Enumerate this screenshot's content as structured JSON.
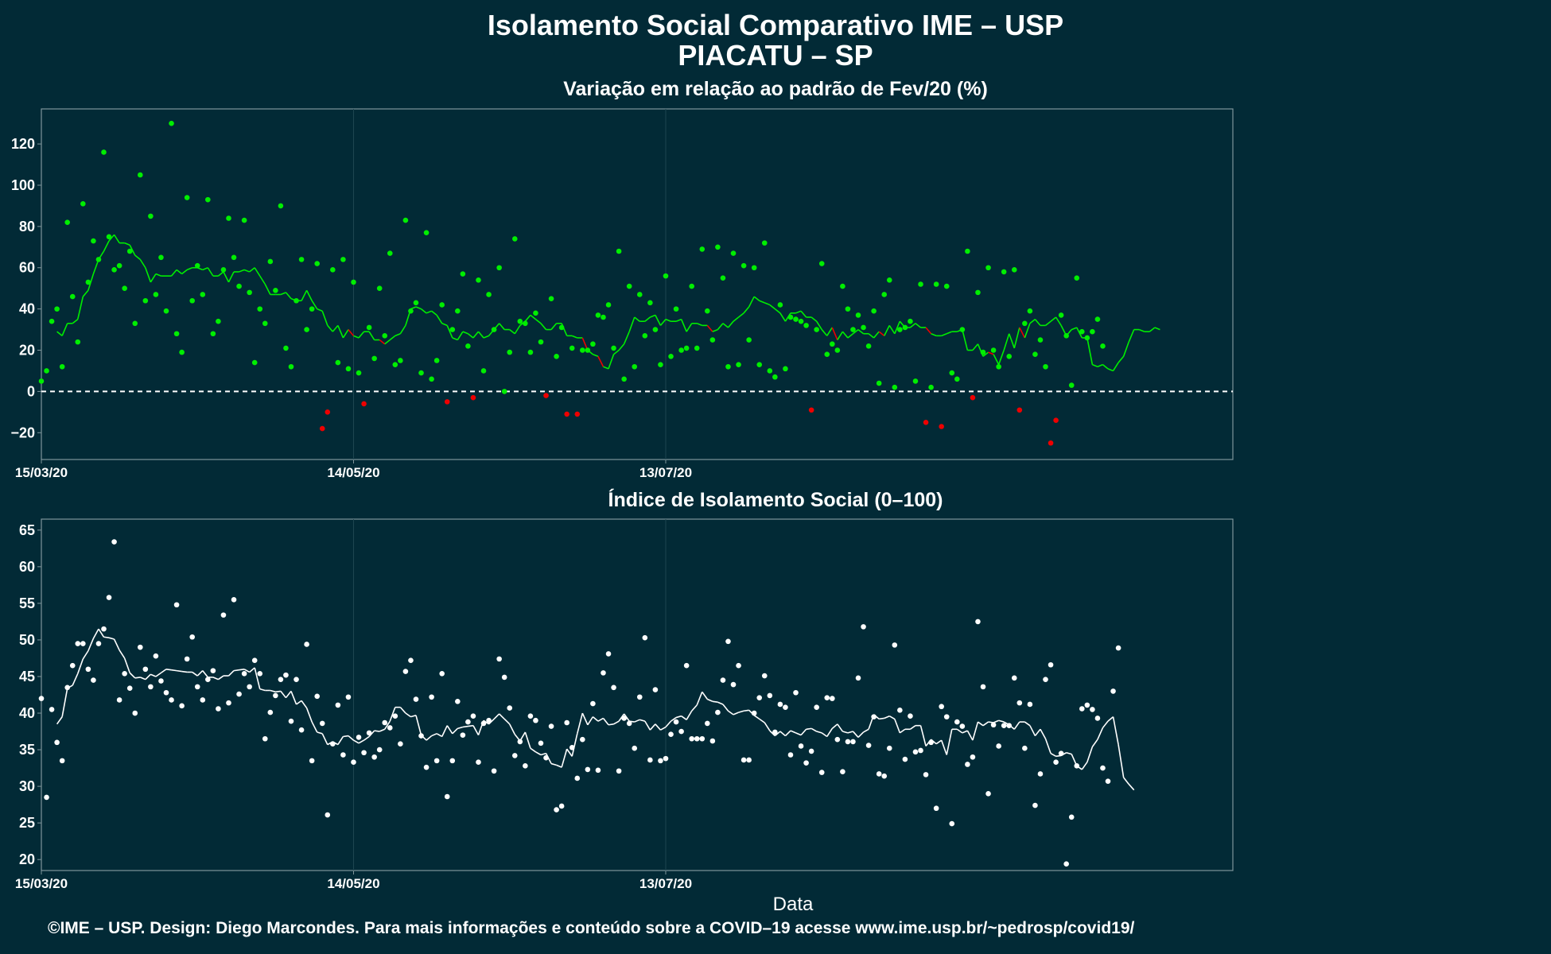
{
  "title": "Isolamento Social Comparativo IME – USP",
  "subtitle": "PIACATU – SP",
  "caption": "©IME – USP. Design: Diego Marcondes. Para mais informações e conteúdo sobre a COVID–19 acesse www.ime.usp.br/~pedrosp/covid19/",
  "colors": {
    "background": "#022a36",
    "above": "#00ee00",
    "below": "#ee0000",
    "index": "#ffffff",
    "grid": "#1e4650",
    "axis": "#7f959b"
  },
  "chart_data": [
    {
      "type": "scatter",
      "title": "Variação em relação ao padrão de Fev/20 (%)",
      "xlabel": "",
      "ylabel": "",
      "x_start": "15/03/20",
      "x_end": "30/10/20",
      "x_ticks": [
        "15/03/20",
        "14/05/20",
        "13/07/20"
      ],
      "y_ticks": [
        -20,
        0,
        20,
        40,
        60,
        80,
        100,
        120
      ],
      "ylim": [
        -33,
        137
      ],
      "reference_line": 0,
      "grid": true,
      "legend": "none",
      "series": [
        {
          "kind": "points",
          "values": [
            5,
            10,
            34,
            40,
            12,
            82,
            46,
            24,
            91,
            53,
            73,
            64,
            116,
            75,
            59,
            61,
            50,
            68,
            33,
            105,
            44,
            85,
            47,
            65,
            39,
            130,
            28,
            19,
            94,
            44,
            61,
            47,
            93,
            28,
            34,
            59,
            84,
            65,
            51,
            83,
            48,
            14,
            40,
            33,
            63,
            49,
            90,
            21,
            12,
            44,
            64,
            30,
            40,
            62,
            -18,
            -10,
            59,
            14,
            64,
            11,
            53,
            9,
            -6,
            31,
            16,
            50,
            27,
            67,
            13,
            15,
            83,
            39,
            43,
            9,
            77,
            6,
            15,
            42,
            -5,
            30,
            39,
            57,
            22,
            -3,
            54,
            10,
            47,
            30,
            60,
            0,
            19,
            74,
            34,
            33,
            19,
            38,
            24,
            -2,
            45,
            17,
            31,
            -11,
            21,
            -11,
            20,
            20,
            23,
            37,
            36,
            42,
            21,
            68,
            6,
            51,
            12,
            47,
            27,
            43,
            30,
            13,
            56,
            17,
            40,
            20,
            21,
            51,
            21,
            69,
            39,
            25,
            70,
            55,
            12,
            67,
            13,
            61,
            25,
            60,
            13,
            72,
            10,
            7,
            42,
            11,
            36,
            35,
            34,
            32,
            -9,
            30,
            62,
            18,
            23,
            20,
            51,
            40,
            30,
            37,
            31,
            22,
            39,
            4,
            47,
            54,
            2,
            30,
            31,
            34,
            5,
            52,
            -15,
            2,
            52,
            -17,
            51,
            9,
            6,
            30,
            68,
            -3,
            48,
            19,
            60,
            20,
            12,
            58,
            17,
            59,
            -9,
            33,
            39,
            18,
            25,
            12,
            -25,
            -14,
            37,
            27,
            3,
            55,
            29,
            26,
            29,
            35,
            22
          ]
        },
        {
          "kind": "moving-average",
          "values": [
            29,
            27,
            33,
            33,
            35,
            46,
            49,
            57,
            64,
            68,
            73,
            76,
            72,
            72,
            71,
            66,
            64,
            60,
            53,
            57,
            56,
            56,
            56,
            59,
            57,
            59,
            60,
            60,
            59,
            60,
            56,
            56,
            58,
            53,
            58,
            58,
            59,
            58,
            60,
            56,
            52,
            47,
            47,
            47,
            48,
            45,
            44,
            44,
            49,
            44,
            40,
            39,
            32,
            29,
            32,
            26,
            30,
            27,
            26,
            29,
            29,
            25,
            25,
            23,
            25,
            27,
            28,
            32,
            40,
            41,
            40,
            38,
            39,
            37,
            33,
            32,
            26,
            25,
            29,
            28,
            26,
            29,
            26,
            27,
            30,
            33,
            30,
            30,
            28,
            32,
            34,
            37,
            35,
            33,
            30,
            30,
            33,
            33,
            27,
            27,
            26,
            26,
            20,
            18,
            17,
            12,
            11,
            18,
            20,
            23,
            29,
            36,
            34,
            34,
            36,
            37,
            32,
            35,
            34,
            34,
            35,
            29,
            33,
            33,
            32,
            32,
            29,
            30,
            33,
            31,
            34,
            36,
            38,
            41,
            46,
            44,
            43,
            42,
            40,
            38,
            34,
            38,
            38,
            39,
            36,
            36,
            34,
            30,
            27,
            31,
            25,
            29,
            26,
            28,
            30,
            28,
            28,
            26,
            29,
            27,
            32,
            28,
            34,
            31,
            31,
            33,
            31,
            31,
            28,
            27,
            27,
            28,
            29,
            29,
            30,
            20,
            20,
            23,
            17,
            19,
            18,
            13,
            20,
            28,
            21,
            31,
            26,
            33,
            35,
            32,
            32,
            34,
            36,
            32,
            27,
            30,
            31,
            26,
            26,
            13,
            12,
            13,
            11,
            10,
            14,
            17,
            24,
            30,
            30,
            29,
            29,
            31,
            30
          ]
        }
      ]
    },
    {
      "type": "scatter",
      "title": "Índice de Isolamento Social (0–100)",
      "xlabel": "Data",
      "ylabel": "",
      "x_start": "15/03/20",
      "x_end": "30/10/20",
      "x_ticks": [
        "15/03/20",
        "14/05/20",
        "13/07/20"
      ],
      "y_ticks": [
        20,
        25,
        30,
        35,
        40,
        45,
        50,
        55,
        60,
        65
      ],
      "ylim": [
        18.5,
        66.5
      ],
      "grid": true,
      "legend": "none",
      "series": [
        {
          "kind": "points",
          "values": [
            42,
            28.5,
            40.5,
            36,
            33.5,
            43.5,
            46.5,
            49.5,
            49.5,
            46,
            44.5,
            49.5,
            51.5,
            55.8,
            63.4,
            41.8,
            45.4,
            43.4,
            40,
            49,
            46,
            43.6,
            47.8,
            44.4,
            42.8,
            41.8,
            54.8,
            41,
            47.4,
            50.4,
            43.6,
            41.8,
            44.6,
            45.8,
            40.6,
            53.4,
            41.4,
            55.5,
            42.6,
            45.4,
            43.6,
            47.2,
            45.4,
            36.5,
            40.1,
            42.4,
            44.6,
            45.2,
            38.9,
            44.6,
            37.7,
            49.4,
            33.5,
            42.3,
            38.6,
            26.1,
            35.8,
            41.1,
            34.3,
            42.2,
            33.3,
            36.7,
            34.6,
            37.3,
            34,
            35,
            38.7,
            38,
            39.6,
            35.8,
            45.7,
            47.2,
            41.9,
            36.9,
            32.6,
            42.2,
            33.5,
            45.4,
            28.6,
            33.5,
            41.6,
            37,
            38.8,
            39.6,
            33.3,
            38.6,
            39,
            32.1,
            47.4,
            44.9,
            40.7,
            34.2,
            36.1,
            32.8,
            39.6,
            39,
            35.9,
            33.9,
            38.2,
            26.8,
            27.3,
            38.7,
            35.3,
            31.1,
            36.4,
            32.3,
            41.3,
            32.2,
            45.5,
            48.1,
            43.5,
            32.1,
            39.3,
            38.6,
            35.2,
            42.2,
            50.3,
            33.6,
            43.2,
            33.5,
            33.8,
            37.1,
            38.8,
            37.5,
            46.5,
            36.5,
            36.5,
            36.5,
            38.6,
            36.2,
            40.1,
            44.5,
            49.8,
            43.9,
            46.5,
            33.6,
            33.6,
            40,
            42.1,
            45.1,
            42.4,
            37.4,
            41.2,
            40.8,
            34.3,
            42.8,
            35.5,
            33.2,
            34.8,
            40.8,
            31.9,
            42.1,
            42,
            36.4,
            32,
            36.1,
            36.1,
            44.8,
            51.8,
            35.6,
            39.5,
            31.7,
            31.4,
            35.2,
            49.3,
            40.4,
            33.7,
            39.6,
            34.7,
            34.9,
            31.6,
            36,
            27,
            40.9,
            39.5,
            24.9,
            38.8,
            38.2,
            33,
            34,
            52.5,
            43.6,
            29,
            38.4,
            35.5,
            38.3,
            38.3,
            44.8,
            41.4,
            35.2,
            41.2,
            27.4,
            31.7,
            44.6,
            46.6,
            33.3,
            34.5,
            19.4,
            25.8,
            32.8,
            40.6,
            41.1,
            40.5,
            39.3,
            32.5,
            30.7,
            43,
            48.9
          ]
        },
        {
          "kind": "moving-average",
          "values": [
            38.5,
            39.5,
            43.4,
            43.8,
            45.4,
            47.4,
            48.5,
            50.2,
            51.5,
            50.4,
            50.3,
            50.1,
            48.6,
            47.5,
            45.5,
            44.8,
            44.9,
            44.6,
            45.3,
            45,
            45.5,
            46,
            45.9,
            45.8,
            45.7,
            45.6,
            45.6,
            45.1,
            45.8,
            44.9,
            44.9,
            44.6,
            45.1,
            45.1,
            45.8,
            45.9,
            46,
            45.6,
            46.2,
            43.3,
            43.1,
            43.1,
            42.9,
            43,
            42.1,
            43,
            41.2,
            41.7,
            40.7,
            38.8,
            37.4,
            37.2,
            35.7,
            36.1,
            35.7,
            36.8,
            36.9,
            36.3,
            35.9,
            36.3,
            36.8,
            37.6,
            37.5,
            37.8,
            38.9,
            40.8,
            40.8,
            40,
            39.5,
            39.7,
            37,
            36.3,
            36.9,
            37.2,
            36.8,
            38.3,
            37.2,
            37.9,
            38.1,
            38.2,
            38.3,
            37,
            39,
            38.5,
            39.2,
            39.9,
            39.2,
            38.5,
            37.1,
            36.2,
            37.4,
            35.2,
            34.7,
            34.3,
            34.5,
            33.1,
            32.9,
            32.6,
            35.1,
            34.1,
            37.2,
            40,
            38.4,
            39.5,
            38.9,
            39.3,
            38.4,
            38.5,
            38.9,
            39.9,
            38.9,
            38.8,
            39.1,
            38.9,
            37.7,
            38.5,
            37.7,
            38.1,
            38.9,
            39.4,
            39.6,
            39.1,
            40.3,
            41.1,
            42.9,
            41.9,
            41.6,
            41.5,
            41.2,
            40.3,
            39.8,
            40.1,
            40.3,
            40.4,
            39.7,
            39.2,
            38.7,
            37.6,
            36.9,
            37.5,
            36.9,
            37.6,
            37.3,
            37,
            37.8,
            37.9,
            37.5,
            37.3,
            36.8,
            37.9,
            38.5,
            37.5,
            37.3,
            37.5,
            36.7,
            37.4,
            37.8,
            39.8,
            39.2,
            39.3,
            39.6,
            39.2,
            37.3,
            37.8,
            37.8,
            38.3,
            38.3,
            35.5,
            36.4,
            35.8,
            36.3,
            34.3,
            37.8,
            37.8,
            37.3,
            37.6,
            36.3,
            38.8,
            38.3,
            38.8,
            38.7,
            39,
            38.8,
            38.4,
            37.8,
            38.8,
            38.8,
            38.3,
            36.9,
            37.8,
            36.5,
            34.5,
            34.1,
            34.2,
            34.6,
            34.4,
            32.8,
            32.3,
            33.3,
            35.4,
            36.4,
            38,
            38.9,
            39.5,
            35.7,
            31.2,
            30.3,
            29.5
          ]
        }
      ]
    }
  ]
}
